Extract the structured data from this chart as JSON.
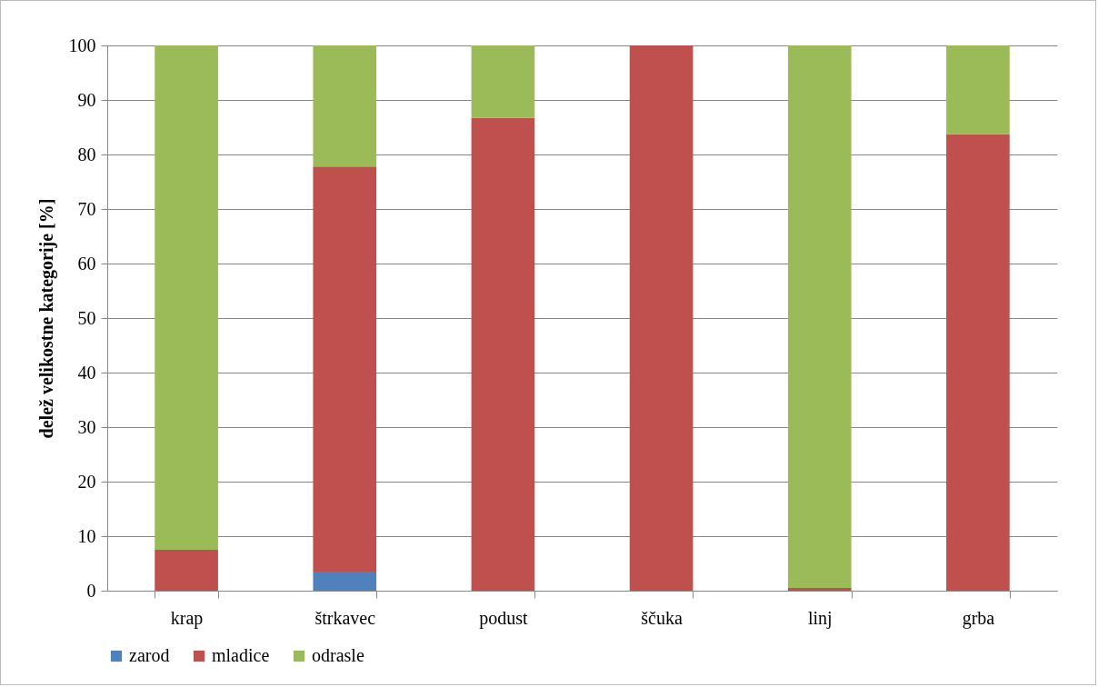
{
  "chart_data": {
    "type": "bar",
    "stacked": true,
    "ylabel": "delež velikostne kategorije [%]",
    "categories": [
      "krap",
      "štrkavec",
      "podust",
      "ščuka",
      "linj",
      "grba"
    ],
    "series": [
      {
        "name": "zarod",
        "color": "#4f81bd",
        "values": [
          0,
          3.5,
          0,
          0,
          0,
          0
        ]
      },
      {
        "name": "mladice",
        "color": "#c0504d",
        "values": [
          7.5,
          74.3,
          86.7,
          100,
          0.5,
          83.7
        ]
      },
      {
        "name": "odrasle",
        "color": "#9bbb59",
        "values": [
          92.5,
          22.2,
          13.3,
          0,
          99.5,
          16.3
        ]
      }
    ],
    "ylim": [
      0,
      100
    ],
    "yticks": [
      0,
      10,
      20,
      30,
      40,
      50,
      60,
      70,
      80,
      90,
      100
    ],
    "grid": "y",
    "legend": "bottom"
  }
}
